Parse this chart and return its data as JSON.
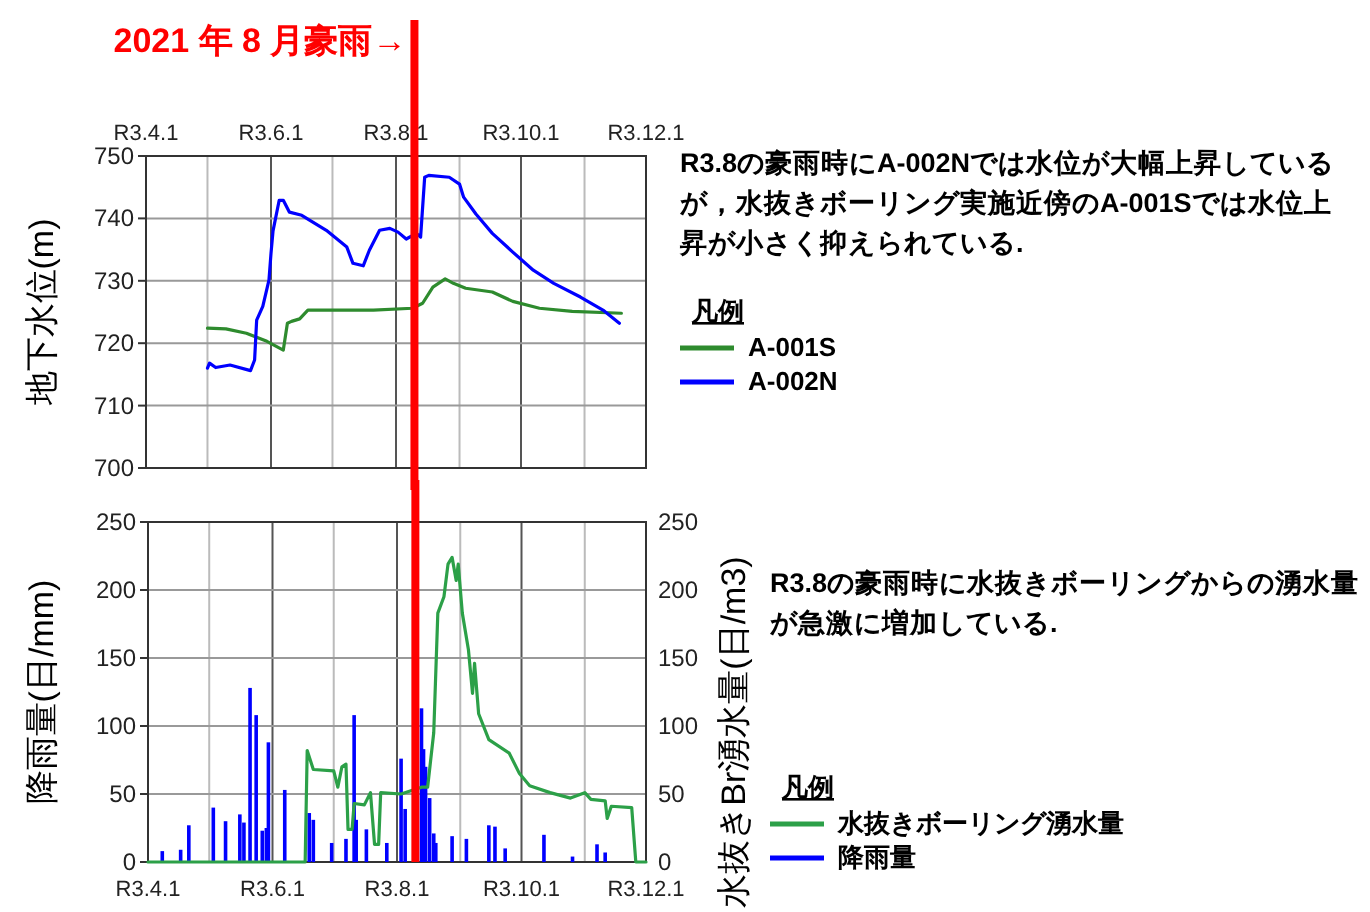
{
  "chart_data": [
    {
      "type": "line",
      "ylabel": "地下水位(m)",
      "xlim": [
        "2021-04-01",
        "2021-12-01"
      ],
      "ylim": [
        700,
        750
      ],
      "yticks": [
        700,
        710,
        720,
        730,
        740,
        750
      ],
      "xticks": [
        {
          "value": "2021-04-01",
          "label": "R3.4.1"
        },
        {
          "value": "2021-05-01",
          "label": null
        },
        {
          "value": "2021-06-01",
          "label": "R3.6.1"
        },
        {
          "value": "2021-07-01",
          "label": null
        },
        {
          "value": "2021-08-01",
          "label": "R3.8.1"
        },
        {
          "value": "2021-09-01",
          "label": null
        },
        {
          "value": "2021-10-01",
          "label": "R3.10.1"
        },
        {
          "value": "2021-11-01",
          "label": null
        },
        {
          "value": "2021-12-01",
          "label": "R3.12.1"
        }
      ],
      "grid": true,
      "legend": "right",
      "legend_title": "凡例",
      "annotations": [
        "R3.8の豪雨時にA-002Nでは水位が大幅上昇しているが，水抜きボーリング実施近傍のA-001Sでは水位上昇が小さく抑えられている."
      ],
      "ref_lines": [
        {
          "axis": "x",
          "value": "2021-08-10",
          "label": "2021 年 8 月豪雨→",
          "color": "#ff0000"
        }
      ],
      "series": [
        {
          "name": "A-001S",
          "color": "#2e8b2e",
          "x": [
            "2021-05-01",
            "2021-05-10",
            "2021-05-20",
            "2021-05-30",
            "2021-06-07",
            "2021-06-09",
            "2021-06-11",
            "2021-06-15",
            "2021-06-19",
            "2021-07-01",
            "2021-07-21",
            "2021-08-09",
            "2021-08-14",
            "2021-08-19",
            "2021-08-25",
            "2021-08-29",
            "2021-09-04",
            "2021-09-17",
            "2021-09-27",
            "2021-10-10",
            "2021-10-26",
            "2021-11-19"
          ],
          "values": [
            722.4,
            722.3,
            721.6,
            720.3,
            718.9,
            723.2,
            723.5,
            723.9,
            725.3,
            725.3,
            725.3,
            725.6,
            726.4,
            729,
            730.3,
            729.6,
            728.8,
            728.2,
            726.7,
            725.6,
            725.1,
            724.8
          ]
        },
        {
          "name": "A-002N",
          "color": "#0000ff",
          "x": [
            "2021-05-01",
            "2021-05-02",
            "2021-05-05",
            "2021-05-12",
            "2021-05-22",
            "2021-05-24",
            "2021-05-25",
            "2021-05-28",
            "2021-05-31",
            "2021-06-01",
            "2021-06-02",
            "2021-06-05",
            "2021-06-07",
            "2021-06-10",
            "2021-06-16",
            "2021-06-28",
            "2021-07-08",
            "2021-07-11",
            "2021-07-16",
            "2021-07-19",
            "2021-07-24",
            "2021-07-29",
            "2021-08-02",
            "2021-08-06",
            "2021-08-11",
            "2021-08-13",
            "2021-08-15",
            "2021-08-17",
            "2021-08-27",
            "2021-09-01",
            "2021-09-03",
            "2021-09-09",
            "2021-09-17",
            "2021-09-27",
            "2021-10-07",
            "2021-10-17",
            "2021-10-30",
            "2021-11-10",
            "2021-11-18"
          ],
          "values": [
            716,
            716.8,
            716.1,
            716.5,
            715.6,
            717.3,
            723.7,
            725.9,
            730.1,
            734.4,
            738,
            742.9,
            742.9,
            741,
            740.5,
            738.1,
            735.4,
            732.8,
            732.4,
            734.9,
            738.1,
            738.4,
            737.8,
            736.7,
            737.6,
            737,
            746.6,
            746.9,
            746.6,
            745.5,
            743.4,
            740.7,
            737.6,
            734.6,
            731.7,
            729.6,
            727.4,
            725.3,
            723.2
          ]
        }
      ]
    },
    {
      "type": "bar",
      "ylabel": "降雨量(日/mm)",
      "y2label": "水抜きBr湧水量(日/m3)",
      "xlim": [
        "2021-04-01",
        "2021-12-01"
      ],
      "ylim": [
        0,
        250
      ],
      "yticks": [
        0,
        50,
        100,
        150,
        200,
        250
      ],
      "y2lim": [
        0,
        250
      ],
      "y2ticks": [
        0,
        50,
        100,
        150,
        200,
        250
      ],
      "xticks": [
        {
          "value": "2021-04-01",
          "label": "R3.4.1"
        },
        {
          "value": "2021-05-01",
          "label": null
        },
        {
          "value": "2021-06-01",
          "label": "R3.6.1"
        },
        {
          "value": "2021-07-01",
          "label": null
        },
        {
          "value": "2021-08-01",
          "label": "R3.8.1"
        },
        {
          "value": "2021-09-01",
          "label": null
        },
        {
          "value": "2021-10-01",
          "label": "R3.10.1"
        },
        {
          "value": "2021-11-01",
          "label": null
        },
        {
          "value": "2021-12-01",
          "label": "R3.12.1"
        }
      ],
      "grid": true,
      "legend": "right",
      "legend_title": "凡例",
      "annotations": [
        "R3.8の豪雨時に水抜きボーリングからの湧水量が急激に増加している."
      ],
      "ref_lines": [
        {
          "axis": "x",
          "value": "2021-08-10",
          "color": "#ff0000"
        }
      ],
      "series": [
        {
          "name": "水抜きボーリング湧水量",
          "type": "line",
          "axis": "y2",
          "color": "#2ca048",
          "x": [
            "2021-04-01",
            "2021-06-15",
            "2021-06-17",
            "2021-06-18",
            "2021-06-21",
            "2021-07-01",
            "2021-07-03",
            "2021-07-05",
            "2021-07-07",
            "2021-07-08",
            "2021-07-10",
            "2021-07-11",
            "2021-07-16",
            "2021-07-19",
            "2021-07-21",
            "2021-07-23",
            "2021-07-24",
            "2021-08-03",
            "2021-08-13",
            "2021-08-16",
            "2021-08-19",
            "2021-08-21",
            "2021-08-24",
            "2021-08-26",
            "2021-08-28",
            "2021-08-30",
            "2021-08-31",
            "2021-09-02",
            "2021-09-05",
            "2021-09-07",
            "2021-09-08",
            "2021-09-10",
            "2021-09-15",
            "2021-09-25",
            "2021-09-30",
            "2021-10-05",
            "2021-10-15",
            "2021-10-25",
            "2021-11-01",
            "2021-11-04",
            "2021-11-11",
            "2021-11-12",
            "2021-11-14",
            "2021-11-24",
            "2021-11-26",
            "2021-12-01"
          ],
          "values": [
            0,
            0,
            0,
            82,
            68,
            67,
            55,
            70,
            72,
            24,
            24,
            43,
            42,
            51,
            13,
            13,
            51,
            50,
            55,
            55,
            95,
            183,
            195,
            219,
            224,
            207,
            219,
            183,
            156,
            124,
            146,
            109,
            90,
            80,
            65,
            56,
            51,
            47,
            51,
            46,
            45,
            32,
            41,
            40,
            0,
            0
          ]
        },
        {
          "name": "降雨量",
          "type": "bar",
          "color": "#0000ff",
          "x": [
            "2021-04-08",
            "2021-04-17",
            "2021-04-21",
            "2021-05-03",
            "2021-05-09",
            "2021-05-16",
            "2021-05-18",
            "2021-05-21",
            "2021-05-24",
            "2021-05-27",
            "2021-05-29",
            "2021-05-30",
            "2021-06-07",
            "2021-06-19",
            "2021-06-21",
            "2021-06-30",
            "2021-07-07",
            "2021-07-11",
            "2021-07-12",
            "2021-07-17",
            "2021-07-27",
            "2021-08-03",
            "2021-08-05",
            "2021-08-13",
            "2021-08-14",
            "2021-08-15",
            "2021-08-17",
            "2021-08-19",
            "2021-08-20",
            "2021-08-28",
            "2021-09-04",
            "2021-09-15",
            "2021-09-18",
            "2021-09-23",
            "2021-10-12",
            "2021-10-26",
            "2021-11-07",
            "2021-11-11"
          ],
          "values": [
            8,
            9,
            27,
            40,
            30,
            35,
            29,
            128,
            108,
            23,
            25,
            88,
            53,
            36,
            31,
            14,
            17,
            108,
            31,
            24,
            14,
            76,
            39,
            113,
            83,
            70,
            47,
            21,
            14,
            19,
            17,
            27,
            26,
            10,
            20,
            4,
            13,
            7
          ]
        }
      ]
    }
  ]
}
